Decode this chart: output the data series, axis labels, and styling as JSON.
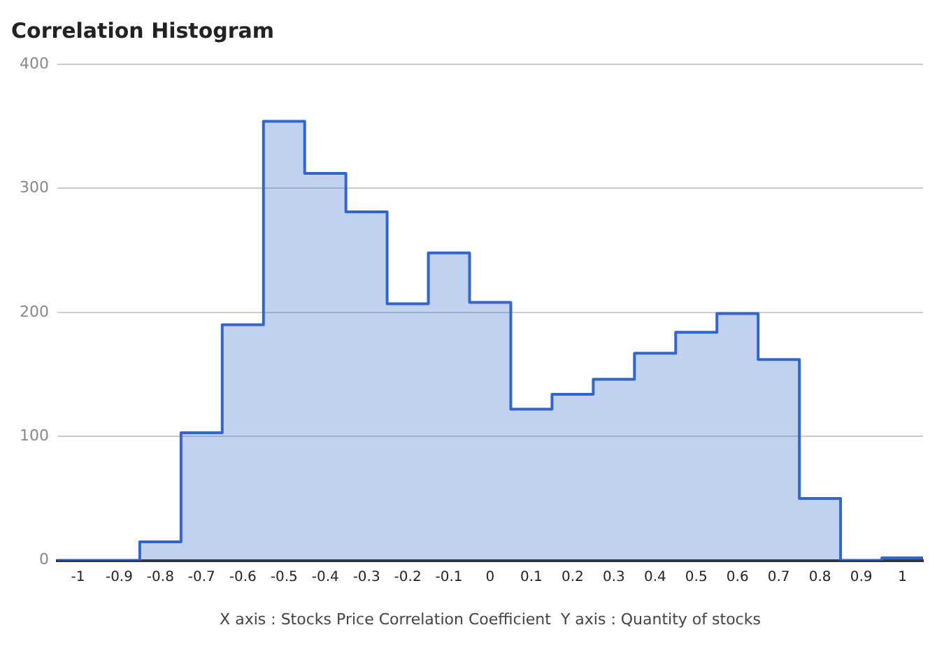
{
  "chart_data": {
    "type": "histogram",
    "title": "Correlation Histogram",
    "xlabel": "X axis : Stocks Price Correlation Coefficient  Y axis : Quantity of stocks",
    "bins": [
      -1.05,
      -0.95,
      -0.85,
      -0.75,
      -0.65,
      -0.55,
      -0.45,
      -0.35,
      -0.25,
      -0.15,
      -0.05,
      0.05,
      0.15,
      0.25,
      0.35,
      0.45,
      0.55,
      0.65,
      0.75,
      0.85,
      0.95,
      1.05
    ],
    "values": [
      0,
      0,
      15,
      103,
      190,
      354,
      312,
      281,
      207,
      248,
      208,
      122,
      134,
      146,
      167,
      184,
      199,
      162,
      50,
      0,
      2
    ],
    "color": "#3366cc",
    "xlim": [
      -1.05,
      1.05
    ],
    "xticks": [
      -1,
      -0.9,
      -0.8,
      -0.7,
      -0.6,
      -0.5,
      -0.4,
      -0.3,
      -0.2,
      -0.1,
      0,
      0.1,
      0.2,
      0.3,
      0.4,
      0.5,
      0.6,
      0.7,
      0.8,
      0.9,
      1
    ],
    "ylim": [
      0,
      400
    ],
    "yticks": [
      0,
      100,
      200,
      300,
      400
    ],
    "grid": "y"
  }
}
